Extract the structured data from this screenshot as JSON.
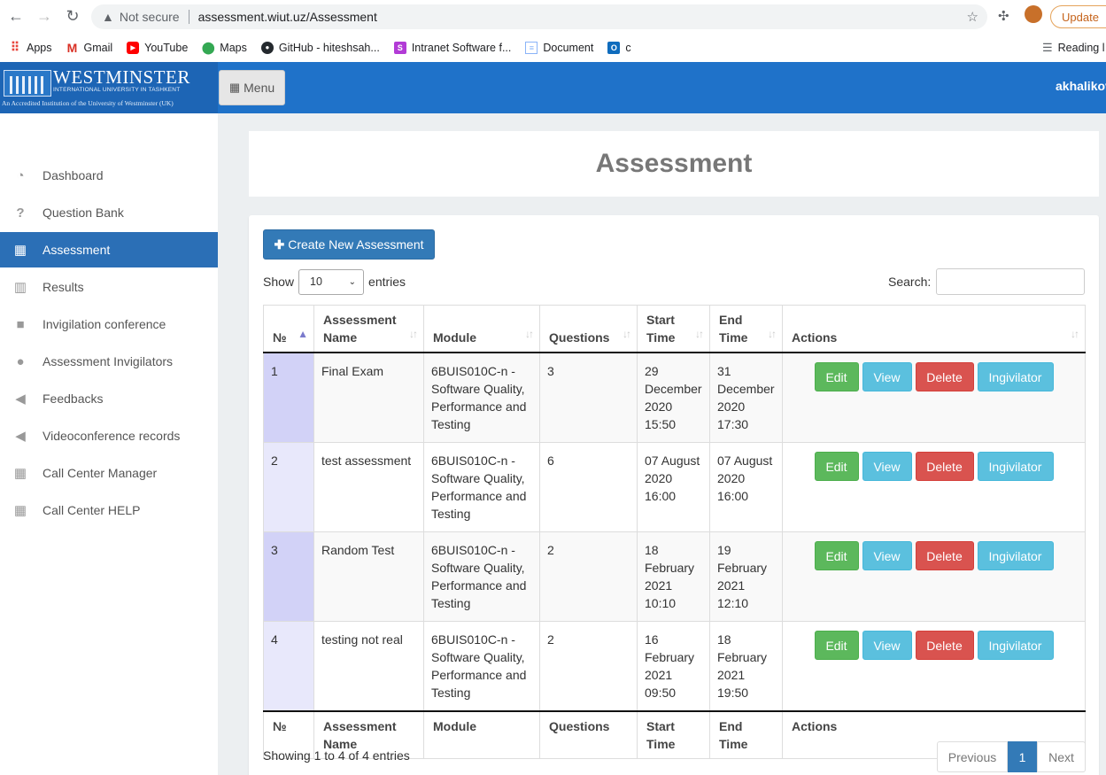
{
  "browser": {
    "security_label": "Not secure",
    "url": "assessment.wiut.uz/Assessment",
    "update_label": "Update",
    "bookmarks": [
      {
        "label": "Apps",
        "icon": "apps-grid-icon",
        "color": "#e8453c"
      },
      {
        "label": "Gmail",
        "icon": "gmail-icon",
        "color": "#d93025"
      },
      {
        "label": "YouTube",
        "icon": "youtube-icon",
        "color": "#ff0000"
      },
      {
        "label": "Maps",
        "icon": "maps-pin-icon",
        "color": "#34a853"
      },
      {
        "label": "GitHub - hiteshsah...",
        "icon": "github-icon",
        "color": "#24292e"
      },
      {
        "label": "Intranet Software f...",
        "icon": "intranet-icon",
        "color": "#b23bd6"
      },
      {
        "label": "Document",
        "icon": "document-icon",
        "color": "#8ab4f8"
      },
      {
        "label": "c",
        "icon": "outlook-icon",
        "color": "#0f6cbd"
      }
    ],
    "reading_list_label": "Reading l"
  },
  "header": {
    "logo_word": "WESTMINSTER",
    "logo_sub": "INTERNATIONAL UNIVERSITY IN TASHKENT",
    "logo_accredited": "An Accredited Institution of the University of Westminster (UK)",
    "menu_label": "Menu",
    "user": "akhalikov"
  },
  "sidebar": {
    "items": [
      {
        "label": "Dashboard",
        "icon": "dashboard-icon",
        "glyph": "◔"
      },
      {
        "label": "Question Bank",
        "icon": "question-icon",
        "glyph": "?"
      },
      {
        "label": "Assessment",
        "icon": "calculator-icon",
        "glyph": "▦",
        "active": true
      },
      {
        "label": "Results",
        "icon": "bar-chart-icon",
        "glyph": "▥"
      },
      {
        "label": "Invigilation conference",
        "icon": "video-camera-icon",
        "glyph": "■"
      },
      {
        "label": "Assessment Invigilators",
        "icon": "users-icon",
        "glyph": "●"
      },
      {
        "label": "Feedbacks",
        "icon": "bullhorn-icon",
        "glyph": "◀"
      },
      {
        "label": "Videoconference records",
        "icon": "bullhorn-icon",
        "glyph": "◀"
      },
      {
        "label": "Call Center Manager",
        "icon": "calculator-icon",
        "glyph": "▦"
      },
      {
        "label": "Call Center HELP",
        "icon": "calculator-icon",
        "glyph": "▦"
      }
    ]
  },
  "page": {
    "title": "Assessment",
    "create_label": "Create New Assessment",
    "show_label": "Show",
    "entries_value": "10",
    "entries_label": "entries",
    "search_label": "Search:",
    "columns": [
      "№",
      "Assessment Name",
      "Module",
      "Questions",
      "Start Time",
      "End Time",
      "Actions"
    ],
    "action_labels": {
      "edit": "Edit",
      "view": "View",
      "delete": "Delete",
      "invigilator": "Ingivilator"
    },
    "rows": [
      {
        "no": "1",
        "name": "Final Exam",
        "module": "6BUIS010C-n - Software Quality, Performance and Testing",
        "questions": "3",
        "start": "29 December 2020 15:50",
        "end": "31 December 2020 17:30"
      },
      {
        "no": "2",
        "name": "test assessment",
        "module": "6BUIS010C-n - Software Quality, Performance and Testing",
        "questions": "6",
        "start": "07 August 2020 16:00",
        "end": "07 August 2020 16:00"
      },
      {
        "no": "3",
        "name": "Random Test",
        "module": "6BUIS010C-n - Software Quality, Performance and Testing",
        "questions": "2",
        "start": "18 February 2021 10:10",
        "end": "19 February 2021 12:10"
      },
      {
        "no": "4",
        "name": "testing not real",
        "module": "6BUIS010C-n - Software Quality, Performance and Testing",
        "questions": "2",
        "start": "16 February 2021 09:50",
        "end": "18 February 2021 19:50"
      }
    ],
    "info": "Showing 1 to 4 of 4 entries",
    "pagination": {
      "previous": "Previous",
      "current": "1",
      "next": "Next"
    }
  }
}
